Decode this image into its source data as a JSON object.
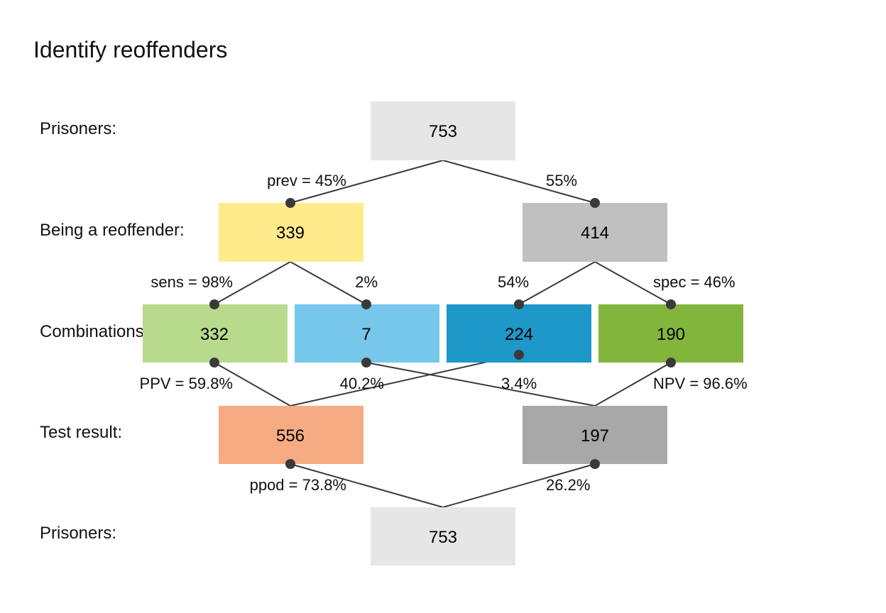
{
  "title": "Identify reoffenders",
  "row_labels": {
    "top": "Prisoners:",
    "condition": "Being a reoffender:",
    "combination": "Combinations:",
    "test": "Test result:",
    "bottom": "Prisoners:"
  },
  "colors": {
    "population": "#e6e6e6",
    "cond_true": "#ffeb8c",
    "cond_false": "#c0c0c0",
    "hi": "#b8da8c",
    "mi": "#76c7ea",
    "fa": "#1e97c9",
    "cr": "#82b53b",
    "dec_pos": "#f6ab82",
    "dec_neg": "#a8a8a8",
    "line": "#3a3a3a"
  },
  "nodes": {
    "top": {
      "value": "753"
    },
    "cond_true": {
      "value": "339"
    },
    "cond_false": {
      "value": "414"
    },
    "hi": {
      "value": "332"
    },
    "mi": {
      "value": "7"
    },
    "fa": {
      "value": "224"
    },
    "cr": {
      "value": "190"
    },
    "dec_pos": {
      "value": "556"
    },
    "dec_neg": {
      "value": "197"
    },
    "bottom": {
      "value": "753"
    }
  },
  "edge_labels": {
    "prev": "prev = 45%",
    "not_prev": "55%",
    "sens": "sens = 98%",
    "miss": "2%",
    "fa": "54%",
    "spec": "spec = 46%",
    "ppv": "PPV = 59.8%",
    "fdr": "40.2%",
    "for": "3.4%",
    "npv": "NPV = 96.6%",
    "ppod": "ppod = 73.8%",
    "not_ppod": "26.2%"
  }
}
